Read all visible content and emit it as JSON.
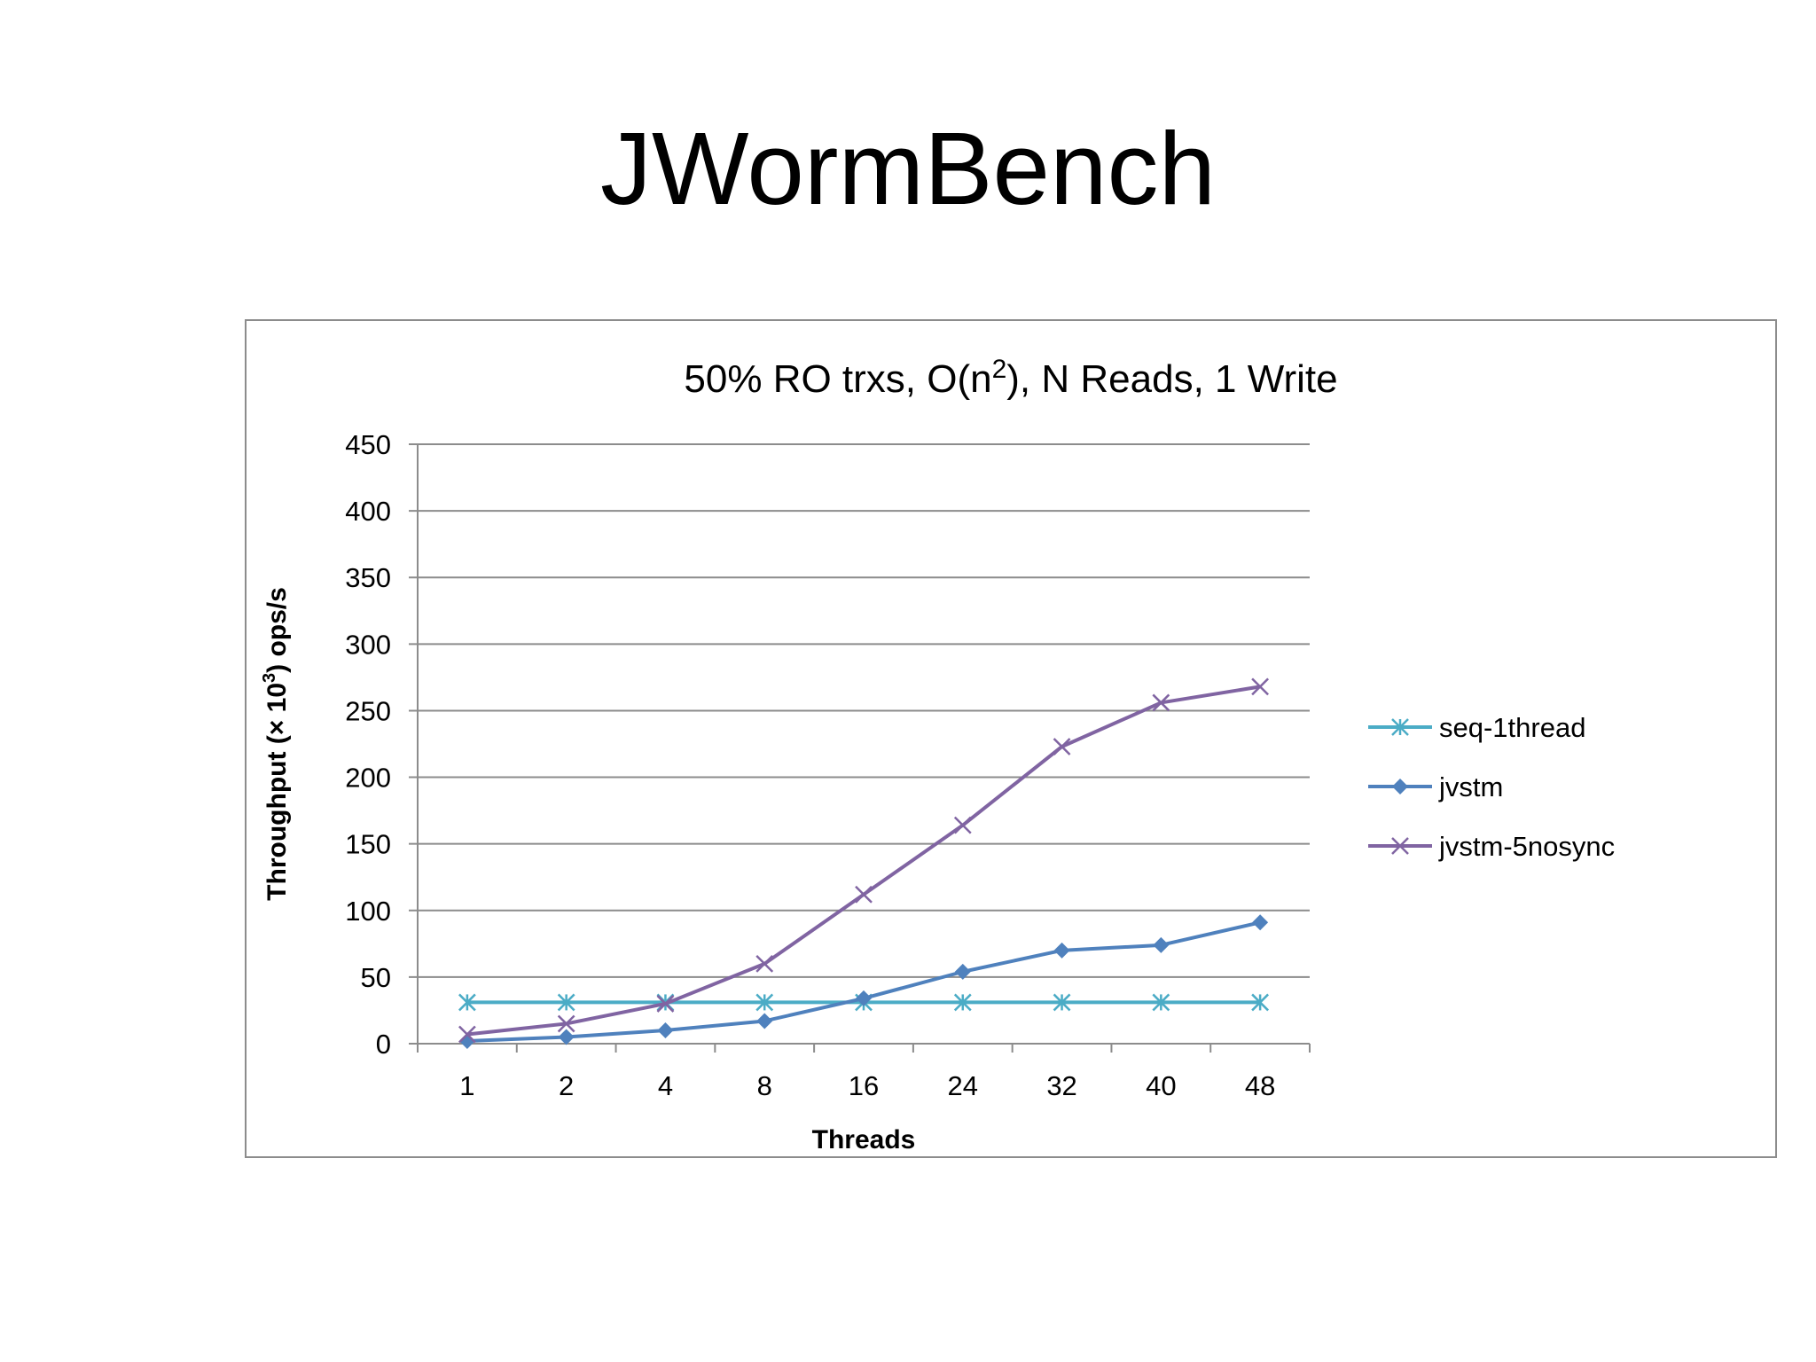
{
  "slide": {
    "title": "JWormBench"
  },
  "chart_data": {
    "type": "line",
    "title_parts": {
      "before": "50% RO trxs, O(n",
      "sup": "2",
      "after": "), N Reads, 1 Write"
    },
    "xlabel": "Threads",
    "ylabel_parts": {
      "before": "Throughput (× 10",
      "sup": "3",
      "after": ") ops/s"
    },
    "categories": [
      "1",
      "2",
      "4",
      "8",
      "16",
      "24",
      "32",
      "40",
      "48"
    ],
    "ylim": [
      0,
      450
    ],
    "yticks": [
      "0",
      "50",
      "100",
      "150",
      "200",
      "250",
      "300",
      "350",
      "400",
      "450"
    ],
    "grid": true,
    "legend_position": "right",
    "series": [
      {
        "name": "seq-1thread",
        "color": "#4BACC6",
        "marker": "asterisk",
        "values": [
          31,
          31,
          31,
          31,
          31,
          31,
          31,
          31,
          31
        ]
      },
      {
        "name": "jvstm",
        "color": "#4F81BD",
        "marker": "diamond",
        "values": [
          2,
          5,
          10,
          17,
          34,
          54,
          70,
          74,
          91
        ]
      },
      {
        "name": "jvstm-5nosync",
        "color": "#8064A2",
        "marker": "x",
        "values": [
          7,
          15,
          30,
          60,
          112,
          164,
          223,
          256,
          268
        ]
      }
    ]
  }
}
